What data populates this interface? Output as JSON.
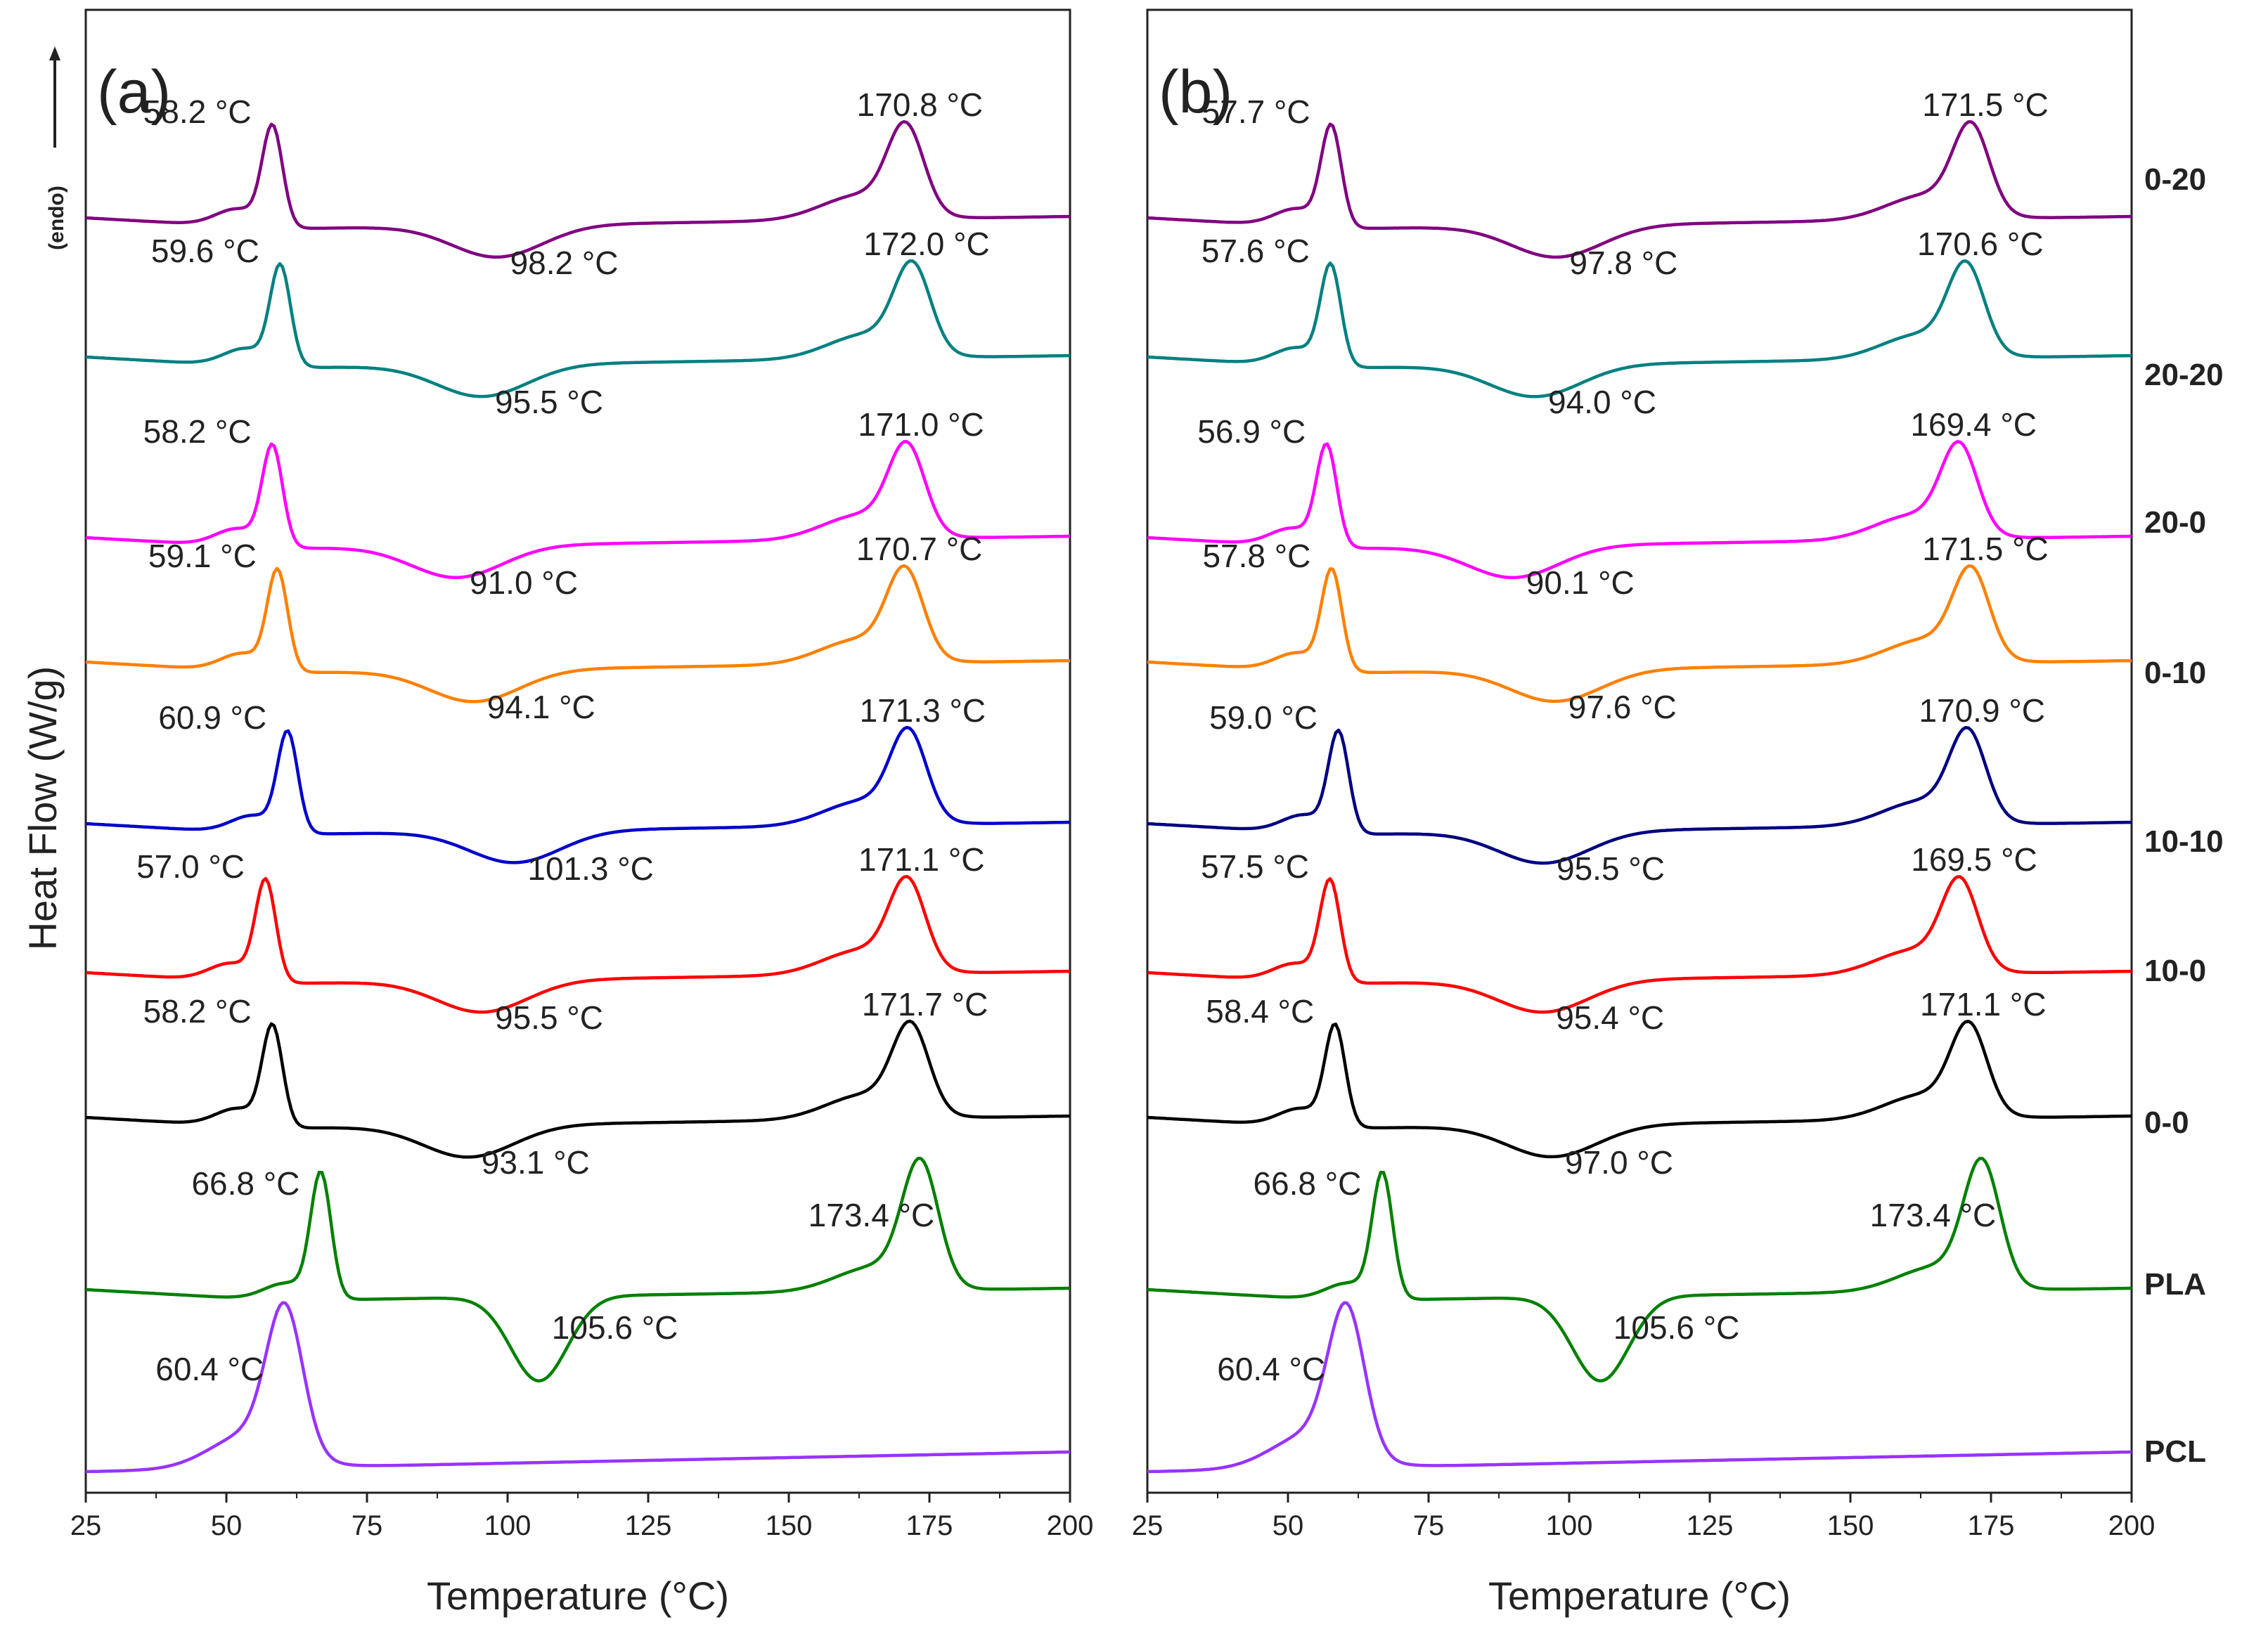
{
  "chart_data": {
    "type": "line",
    "ylabel": "Heat Flow (W/g)",
    "endo_label": "(endo)",
    "xlim": [
      25,
      200
    ],
    "xticks": [
      "25",
      "50",
      "75",
      "100",
      "125",
      "150",
      "175",
      "200"
    ],
    "panels": [
      {
        "label": "(a)",
        "xlabel": "Temperature (°C)",
        "series": [
          {
            "name": "0-20",
            "color": "#800080",
            "annotations": [
              {
                "x": 58.2,
                "text": "58.2 °C"
              },
              {
                "x": 98.2,
                "text": "98.2 °C"
              },
              {
                "x": 170.8,
                "text": "170.8 °C"
              }
            ]
          },
          {
            "name": "20-20",
            "color": "#008080",
            "annotations": [
              {
                "x": 59.6,
                "text": "59.6 °C"
              },
              {
                "x": 95.5,
                "text": "95.5 °C"
              },
              {
                "x": 172.0,
                "text": "172.0 °C"
              }
            ]
          },
          {
            "name": "20-0",
            "color": "#ff00ff",
            "annotations": [
              {
                "x": 58.2,
                "text": "58.2 °C"
              },
              {
                "x": 91.0,
                "text": "91.0 °C"
              },
              {
                "x": 171.0,
                "text": "171.0 °C"
              }
            ]
          },
          {
            "name": "0-10",
            "color": "#ff8000",
            "annotations": [
              {
                "x": 59.1,
                "text": "59.1 °C"
              },
              {
                "x": 94.1,
                "text": "94.1 °C"
              },
              {
                "x": 170.7,
                "text": "170.7 °C"
              }
            ]
          },
          {
            "name": "10-10",
            "color": "#0000cc",
            "annotations": [
              {
                "x": 60.9,
                "text": "60.9 °C"
              },
              {
                "x": 101.3,
                "text": "101.3 °C"
              },
              {
                "x": 171.3,
                "text": "171.3 °C"
              }
            ]
          },
          {
            "name": "10-0",
            "color": "#ff0000",
            "annotations": [
              {
                "x": 57.0,
                "text": "57.0 °C"
              },
              {
                "x": 95.5,
                "text": "95.5 °C"
              },
              {
                "x": 171.1,
                "text": "171.1 °C"
              }
            ]
          },
          {
            "name": "0-0",
            "color": "#000000",
            "annotations": [
              {
                "x": 58.2,
                "text": "58.2 °C"
              },
              {
                "x": 93.1,
                "text": "93.1 °C"
              },
              {
                "x": 171.7,
                "text": "171.7 °C"
              }
            ]
          },
          {
            "name": "PLA",
            "color": "#008000",
            "annotations": [
              {
                "x": 66.8,
                "text": "66.8 °C"
              },
              {
                "x": 105.6,
                "text": "105.6 °C"
              },
              {
                "x": 173.4,
                "text": "173.4 °C"
              }
            ]
          },
          {
            "name": "PCL",
            "color": "#9933ff",
            "annotations": [
              {
                "x": 60.4,
                "text": "60.4 °C"
              }
            ]
          }
        ]
      },
      {
        "label": "(b)",
        "xlabel": "Temperature (°C)",
        "series": [
          {
            "name": "0-20",
            "color": "#800080",
            "annotations": [
              {
                "x": 57.7,
                "text": "57.7 °C"
              },
              {
                "x": 97.8,
                "text": "97.8 °C"
              },
              {
                "x": 171.5,
                "text": "171.5 °C"
              }
            ]
          },
          {
            "name": "20-20",
            "color": "#008080",
            "annotations": [
              {
                "x": 57.6,
                "text": "57.6 °C"
              },
              {
                "x": 94.0,
                "text": "94.0 °C"
              },
              {
                "x": 170.6,
                "text": "170.6 °C"
              }
            ]
          },
          {
            "name": "20-0",
            "color": "#ff00ff",
            "annotations": [
              {
                "x": 56.9,
                "text": "56.9 °C"
              },
              {
                "x": 90.1,
                "text": "90.1 °C"
              },
              {
                "x": 169.4,
                "text": "169.4 °C"
              }
            ]
          },
          {
            "name": "0-10",
            "color": "#ff8000",
            "annotations": [
              {
                "x": 57.8,
                "text": "57.8 °C"
              },
              {
                "x": 97.6,
                "text": "97.6 °C"
              },
              {
                "x": 171.5,
                "text": "171.5 °C"
              }
            ]
          },
          {
            "name": "10-10",
            "color": "#000080",
            "annotations": [
              {
                "x": 59.0,
                "text": "59.0 °C"
              },
              {
                "x": 95.5,
                "text": "95.5 °C"
              },
              {
                "x": 170.9,
                "text": "170.9 °C"
              }
            ]
          },
          {
            "name": "10-0",
            "color": "#ff0000",
            "annotations": [
              {
                "x": 57.5,
                "text": "57.5 °C"
              },
              {
                "x": 95.4,
                "text": "95.4 °C"
              },
              {
                "x": 169.5,
                "text": "169.5 °C"
              }
            ]
          },
          {
            "name": "0-0",
            "color": "#000000",
            "annotations": [
              {
                "x": 58.4,
                "text": "58.4 °C"
              },
              {
                "x": 97.0,
                "text": "97.0 °C"
              },
              {
                "x": 171.1,
                "text": "171.1 °C"
              }
            ]
          },
          {
            "name": "PLA",
            "color": "#008000",
            "annotations": [
              {
                "x": 66.8,
                "text": "66.8 °C"
              },
              {
                "x": 105.6,
                "text": "105.6 °C"
              },
              {
                "x": 173.4,
                "text": "173.4 °C"
              }
            ]
          },
          {
            "name": "PCL",
            "color": "#9933ff",
            "annotations": [
              {
                "x": 60.4,
                "text": "60.4 °C"
              }
            ]
          }
        ]
      }
    ]
  }
}
